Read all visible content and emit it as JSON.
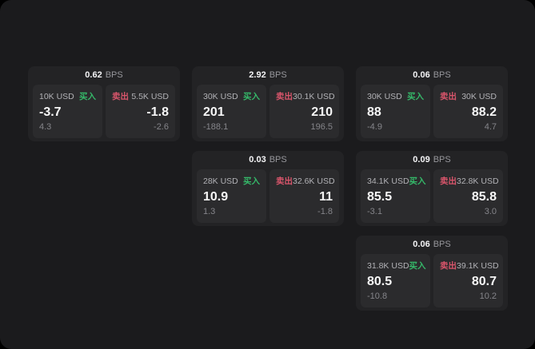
{
  "unit_label": "BPS",
  "buy_label": "买入",
  "sell_label": "卖出",
  "colors": {
    "buy": "#35b869",
    "sell": "#d9556b",
    "background": "#1b1b1d",
    "card": "#232325",
    "panel": "#2b2b2d"
  },
  "cards": [
    {
      "spread_bps": "0.62",
      "buy": {
        "amount": "10K USD",
        "price": "-3.7",
        "sub": "4.3"
      },
      "sell": {
        "amount": "5.5K USD",
        "price": "-1.8",
        "sub": "-2.6"
      }
    },
    {
      "spread_bps": "2.92",
      "buy": {
        "amount": "30K USD",
        "price": "201",
        "sub": "-188.1"
      },
      "sell": {
        "amount": "30.1K USD",
        "price": "210",
        "sub": "196.5"
      }
    },
    {
      "spread_bps": "0.06",
      "buy": {
        "amount": "30K USD",
        "price": "88",
        "sub": "-4.9"
      },
      "sell": {
        "amount": "30K USD",
        "price": "88.2",
        "sub": "4.7"
      }
    },
    {
      "spread_bps": "0.03",
      "buy": {
        "amount": "28K USD",
        "price": "10.9",
        "sub": "1.3"
      },
      "sell": {
        "amount": "32.6K USD",
        "price": "11",
        "sub": "-1.8"
      }
    },
    {
      "spread_bps": "0.09",
      "buy": {
        "amount": "34.1K USD",
        "price": "85.5",
        "sub": "-3.1"
      },
      "sell": {
        "amount": "32.8K USD",
        "price": "85.8",
        "sub": "3.0"
      }
    },
    {
      "spread_bps": "0.06",
      "buy": {
        "amount": "31.8K USD",
        "price": "80.5",
        "sub": "-10.8"
      },
      "sell": {
        "amount": "39.1K USD",
        "price": "80.7",
        "sub": "10.2"
      }
    }
  ]
}
